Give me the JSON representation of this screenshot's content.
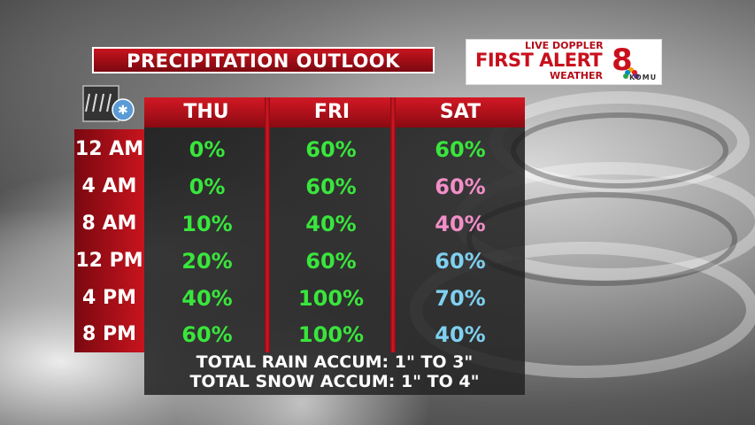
{
  "title": "PRECIPITATION OUTLOOK",
  "logo": {
    "line1": "LIVE DOPPLER",
    "line2": "FIRST ALERT",
    "line3": "WEATHER",
    "station": "KOMU"
  },
  "columns": [
    "THU",
    "FRI",
    "SAT"
  ],
  "rows": [
    {
      "time": "12 AM",
      "values": [
        "0%",
        "60%",
        "60%"
      ],
      "colors": [
        "#39e63c",
        "#39e63c",
        "#39e63c"
      ]
    },
    {
      "time": "4 AM",
      "values": [
        "0%",
        "60%",
        "60%"
      ],
      "colors": [
        "#39e63c",
        "#39e63c",
        "#f28ec8"
      ]
    },
    {
      "time": "8 AM",
      "values": [
        "10%",
        "40%",
        "40%"
      ],
      "colors": [
        "#39e63c",
        "#39e63c",
        "#f28ec8"
      ]
    },
    {
      "time": "12 PM",
      "values": [
        "20%",
        "60%",
        "60%"
      ],
      "colors": [
        "#39e63c",
        "#39e63c",
        "#7fd0f0"
      ]
    },
    {
      "time": "4 PM",
      "values": [
        "40%",
        "100%",
        "70%"
      ],
      "colors": [
        "#39e63c",
        "#39e63c",
        "#7fd0f0"
      ]
    },
    {
      "time": "8 PM",
      "values": [
        "60%",
        "100%",
        "40%"
      ],
      "colors": [
        "#39e63c",
        "#39e63c",
        "#7fd0f0"
      ]
    }
  ],
  "footer": {
    "rain": "TOTAL RAIN ACCUM: 1\" TO 3\"",
    "snow": "TOTAL SNOW ACCUM: 1\" TO 4\""
  }
}
